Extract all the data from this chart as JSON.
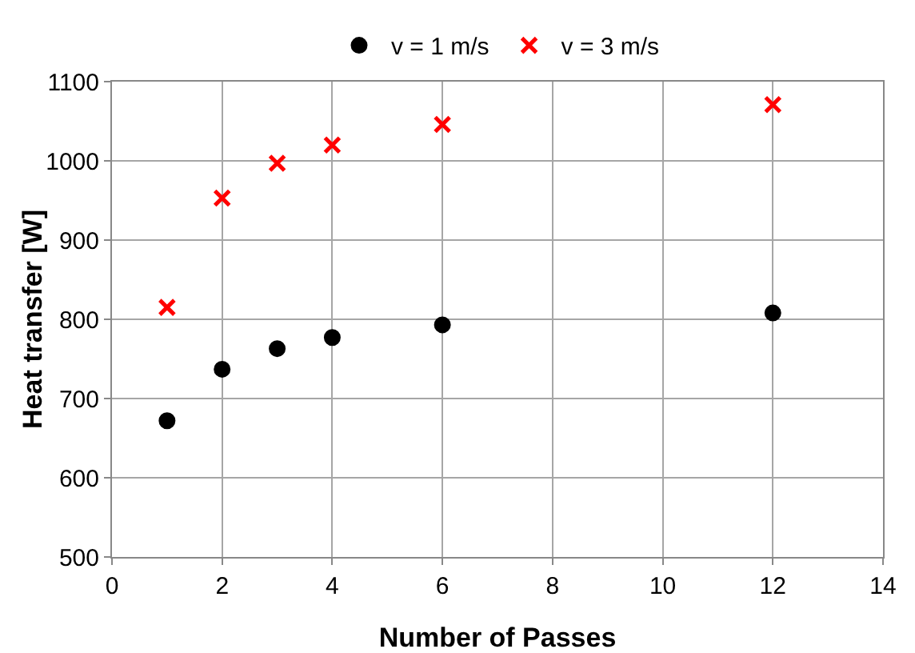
{
  "chart_data": {
    "type": "scatter",
    "xlabel": "Number of Passes",
    "ylabel": "Heat transfer [W]",
    "x": [
      1,
      2,
      3,
      4,
      6,
      12
    ],
    "series": [
      {
        "name": "v = 1 m/s",
        "color": "#000000",
        "marker": "circle",
        "values": [
          672,
          737,
          763,
          777,
          793,
          808
        ]
      },
      {
        "name": "v = 3 m/s",
        "color": "#ff0000",
        "marker": "cross",
        "values": [
          815,
          953,
          997,
          1020,
          1046,
          1071
        ]
      }
    ],
    "xlim": [
      0,
      14
    ],
    "xticks": [
      0,
      2,
      4,
      6,
      8,
      10,
      12,
      14
    ],
    "ylim": [
      500,
      1100
    ],
    "yticks": [
      500,
      600,
      700,
      800,
      900,
      1000,
      1100
    ],
    "grid": true,
    "legend": "top"
  }
}
